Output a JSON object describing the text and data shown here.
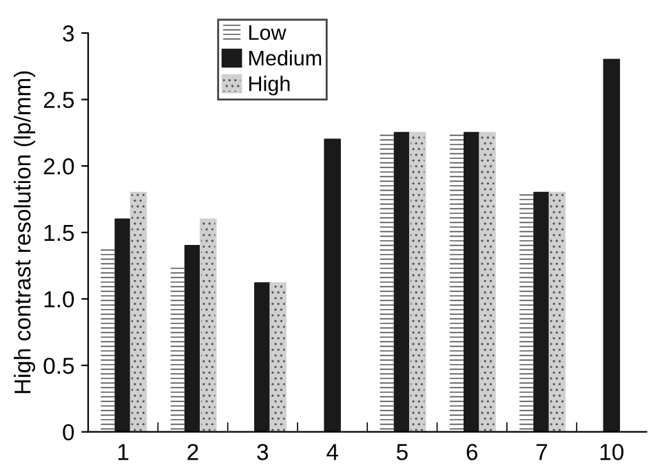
{
  "chart_data": {
    "type": "bar",
    "ylabel": "High contrast resolution (lp/mm)",
    "categories": [
      "1",
      "2",
      "3",
      "4",
      "5",
      "6",
      "7",
      "10"
    ],
    "series": [
      {
        "name": "Low",
        "color": "#ffffff",
        "values": [
          1.4,
          1.25,
          null,
          null,
          2.25,
          2.25,
          1.8,
          null
        ]
      },
      {
        "name": "Medium",
        "color": "#1a1a1a",
        "values": [
          1.6,
          1.4,
          1.12,
          2.2,
          2.25,
          2.25,
          1.8,
          2.8
        ]
      },
      {
        "name": "High",
        "color": "#d0d0d0",
        "values": [
          1.8,
          1.6,
          1.12,
          null,
          2.25,
          2.25,
          1.8,
          null
        ]
      }
    ],
    "ylim": [
      0,
      3
    ],
    "yticks": [
      0,
      {
        "value": 0.5,
        "label": "0.5"
      },
      {
        "value": 1,
        "label": "1.0"
      },
      {
        "value": 1.5,
        "label": "1.5"
      },
      {
        "value": 2,
        "label": "2.0"
      },
      {
        "value": 2.5,
        "label": "2.5"
      },
      3
    ],
    "grid": false,
    "legend": "top"
  }
}
